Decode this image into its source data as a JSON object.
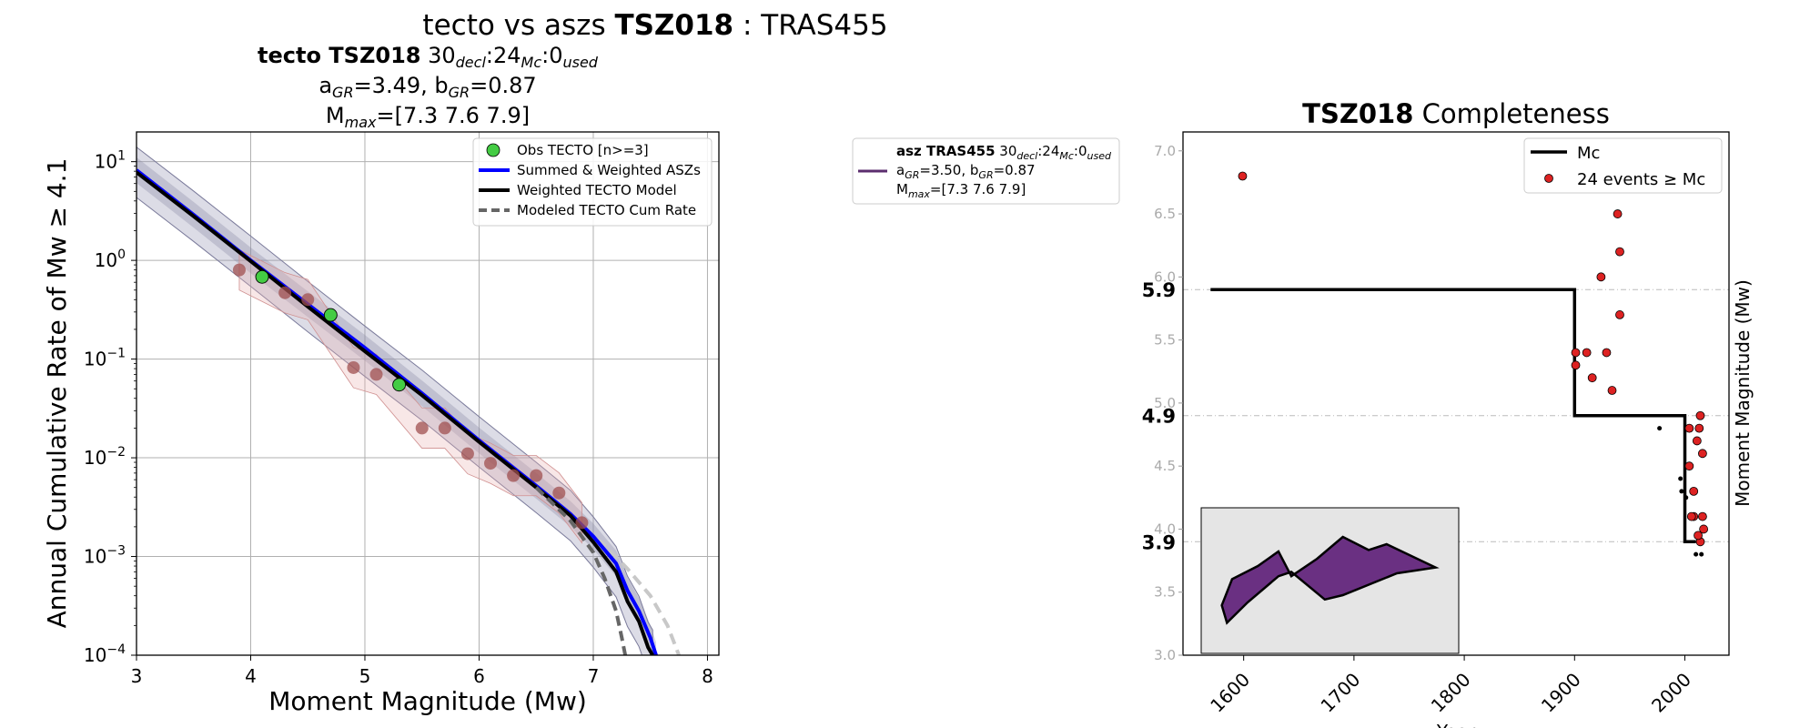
{
  "suptitle": {
    "pre": "tecto vs aszs ",
    "bold": "TSZ018",
    "post": " : TRAS455"
  },
  "left_title": {
    "line1_bold": "tecto TSZ018",
    "line1_rest": "  30",
    "decl": "decl",
    "mid1": ":24",
    "mc": "Mc",
    "mid2": ":0",
    "used": "used",
    "a_label": "a",
    "a_sub": "GR",
    "a_val": "=3.49,  ",
    "b_label": "b",
    "b_sub": "GR",
    "b_val": "=0.87",
    "mmax_label": "M",
    "mmax_sub": "max",
    "mmax_val": "=[7.3 7.6 7.9]"
  },
  "asz_legend": {
    "bold": "asz TRAS455",
    "rest": " 30",
    "decl": "decl",
    "mid1": ":24",
    "mc": "Mc",
    "mid2": ":0",
    "used": "used",
    "line2_a": "a",
    "line2_a_sub": "GR",
    "line2_a_val": "=3.50,  ",
    "line2_b": "b",
    "line2_b_sub": "GR",
    "line2_b_val": "=0.87",
    "line3_m": "M",
    "line3_sub": "max",
    "line3_val": "=[7.3 7.6 7.9]",
    "color": "#5b2d6e"
  },
  "right_title": {
    "bold": "TSZ018",
    "rest": " Completeness"
  },
  "colors": {
    "blue": "#0000ff",
    "black": "#000000",
    "green": "#44cc44",
    "obs_red": "#a05050",
    "dashed": "#666666",
    "light_dashed": "#c8c8c8",
    "red_dot": "#dd2222",
    "polygon": "#6a3082",
    "inset_bg": "#e5e5e5"
  },
  "chart_data": [
    {
      "type": "line",
      "xlabel": "Moment Magnitude (Mw)",
      "ylabel": "Annual Cumulative Rate of Mw  ≥  4.1",
      "xlim": [
        3,
        8.1
      ],
      "ylim": [
        0.0001,
        20
      ],
      "yscale": "log",
      "xticks": [
        "3",
        "4",
        "5",
        "6",
        "7",
        "8"
      ],
      "yticks": [
        {
          "base": "10",
          "exp": "1",
          "value": 10
        },
        {
          "base": "10",
          "exp": "0",
          "value": 1
        },
        {
          "base": "10",
          "exp": "−1",
          "value": 0.1
        },
        {
          "base": "10",
          "exp": "−2",
          "value": 0.01
        },
        {
          "base": "10",
          "exp": "−3",
          "value": 0.001
        },
        {
          "base": "10",
          "exp": "−4",
          "value": 0.0001
        }
      ],
      "grid": true,
      "legend_position": "top-right",
      "legend": [
        {
          "label": "Obs TECTO [n>=3]",
          "kind": "marker"
        },
        {
          "label": "Summed & Weighted ASZs",
          "kind": "blue"
        },
        {
          "label": "Weighted TECTO Model",
          "kind": "black"
        },
        {
          "label": "Modeled TECTO Cum Rate",
          "kind": "dashed"
        }
      ],
      "obs_tecto": [
        [
          4.1,
          0.68
        ],
        [
          4.7,
          0.28
        ],
        [
          5.3,
          0.055
        ]
      ],
      "obs_all": [
        [
          3.9,
          0.8
        ],
        [
          4.3,
          0.47
        ],
        [
          4.5,
          0.4
        ],
        [
          4.9,
          0.082
        ],
        [
          5.1,
          0.07
        ],
        [
          5.5,
          0.02
        ],
        [
          5.7,
          0.02
        ],
        [
          5.9,
          0.011
        ],
        [
          6.1,
          0.0088
        ],
        [
          6.3,
          0.0066
        ],
        [
          6.5,
          0.0066
        ],
        [
          6.7,
          0.0044
        ],
        [
          6.9,
          0.0022
        ]
      ],
      "summed_asz": [
        [
          3,
          8.2
        ],
        [
          3.5,
          2.9
        ],
        [
          4,
          1.0
        ],
        [
          4.5,
          0.36
        ],
        [
          5,
          0.13
        ],
        [
          5.5,
          0.045
        ],
        [
          6,
          0.015
        ],
        [
          6.5,
          0.0052
        ],
        [
          6.8,
          0.0027
        ],
        [
          7.0,
          0.0016
        ],
        [
          7.2,
          0.00085
        ],
        [
          7.3,
          0.00045
        ],
        [
          7.4,
          0.00028
        ],
        [
          7.5,
          0.00015
        ],
        [
          7.55,
          0.0001
        ]
      ],
      "tecto_model": [
        [
          3,
          7.8
        ],
        [
          3.5,
          2.8
        ],
        [
          4,
          0.98
        ],
        [
          4.5,
          0.34
        ],
        [
          5,
          0.12
        ],
        [
          5.5,
          0.043
        ],
        [
          6,
          0.0145
        ],
        [
          6.5,
          0.005
        ],
        [
          6.8,
          0.0026
        ],
        [
          7.0,
          0.0014
        ],
        [
          7.2,
          0.0007
        ],
        [
          7.3,
          0.00035
        ],
        [
          7.4,
          0.00022
        ],
        [
          7.48,
          0.00012
        ],
        [
          7.52,
          0.0001
        ]
      ],
      "modeled_dashed": [
        [
          6.5,
          0.005
        ],
        [
          6.8,
          0.0023
        ],
        [
          7.0,
          0.0011
        ],
        [
          7.1,
          0.0006
        ],
        [
          7.2,
          0.00028
        ],
        [
          7.25,
          0.00015
        ],
        [
          7.28,
          0.0001
        ]
      ],
      "light_dashed": [
        [
          6.8,
          0.0025
        ],
        [
          7.1,
          0.0013
        ],
        [
          7.3,
          0.00075
        ],
        [
          7.5,
          0.0004
        ],
        [
          7.65,
          0.0002
        ],
        [
          7.75,
          0.0001
        ]
      ]
    },
    {
      "type": "line",
      "xlabel": "Year",
      "ylabel": "Moment Magnitude (Mw)",
      "xlim": [
        1545,
        2040
      ],
      "ylim": [
        3.0,
        7.15
      ],
      "xticks": [
        "1600",
        "1700",
        "1800",
        "1900",
        "2000"
      ],
      "yticks": [
        "3.0",
        "3.5",
        "4.0",
        "4.5",
        "5.0",
        "5.5",
        "6.0",
        "6.5",
        "7.0"
      ],
      "mc_labels": [
        {
          "value": 5.9,
          "text": "5.9"
        },
        {
          "value": 4.9,
          "text": "4.9"
        },
        {
          "value": 3.9,
          "text": "3.9"
        }
      ],
      "legend_position": "top-right",
      "legend": [
        {
          "label": "Mc",
          "kind": "line"
        },
        {
          "label": "24 events  ≥  Mc",
          "kind": "dot"
        }
      ],
      "mc_step": [
        [
          1570,
          5.9
        ],
        [
          1900,
          5.9
        ],
        [
          1900,
          4.9
        ],
        [
          2000,
          4.9
        ],
        [
          2000,
          3.9
        ],
        [
          2010,
          3.9
        ]
      ],
      "events_above": [
        [
          1599,
          6.8
        ],
        [
          1901,
          5.4
        ],
        [
          1901,
          5.3
        ],
        [
          1911,
          5.4
        ],
        [
          1916,
          5.2
        ],
        [
          1924,
          6.0
        ],
        [
          1929,
          5.4
        ],
        [
          1934,
          5.1
        ],
        [
          1939,
          6.5
        ],
        [
          1941,
          6.2
        ],
        [
          1941,
          5.7
        ],
        [
          2004,
          4.8
        ],
        [
          2004,
          4.5
        ],
        [
          2008,
          4.3
        ],
        [
          2008,
          4.1
        ],
        [
          2011,
          4.7
        ],
        [
          2013,
          4.8
        ],
        [
          2014,
          4.9
        ],
        [
          2016,
          4.6
        ],
        [
          2016,
          4.1
        ],
        [
          2014,
          3.9
        ],
        [
          2017,
          4.0
        ],
        [
          2006,
          4.1
        ],
        [
          2012,
          3.95
        ]
      ],
      "events_below": [
        [
          1977,
          4.8
        ],
        [
          1996,
          4.4
        ],
        [
          1997,
          4.3
        ],
        [
          2010,
          3.8
        ],
        [
          2015,
          3.8
        ],
        [
          2001,
          4.25
        ]
      ]
    }
  ],
  "inset_polygon": [
    [
      0.08,
      0.67
    ],
    [
      0.12,
      0.49
    ],
    [
      0.22,
      0.4
    ],
    [
      0.3,
      0.3
    ],
    [
      0.35,
      0.47
    ],
    [
      0.45,
      0.35
    ],
    [
      0.55,
      0.2
    ],
    [
      0.65,
      0.29
    ],
    [
      0.72,
      0.25
    ],
    [
      0.91,
      0.41
    ],
    [
      0.76,
      0.45
    ],
    [
      0.55,
      0.6
    ],
    [
      0.48,
      0.63
    ],
    [
      0.35,
      0.44
    ],
    [
      0.3,
      0.47
    ],
    [
      0.18,
      0.65
    ],
    [
      0.1,
      0.79
    ]
  ]
}
